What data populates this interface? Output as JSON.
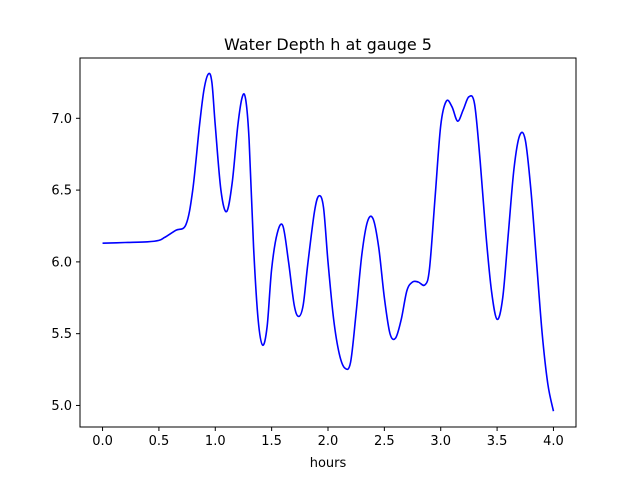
{
  "chart_data": {
    "type": "line",
    "title": "Water Depth h at gauge 5",
    "xlabel": "hours",
    "ylabel": "",
    "xlim": [
      -0.2,
      4.2
    ],
    "ylim": [
      4.85,
      7.42
    ],
    "xticks": [
      0.0,
      0.5,
      1.0,
      1.5,
      2.0,
      2.5,
      3.0,
      3.5,
      4.0
    ],
    "xtick_labels": [
      "0.0",
      "0.5",
      "1.0",
      "1.5",
      "2.0",
      "2.5",
      "3.0",
      "3.5",
      "4.0"
    ],
    "yticks": [
      5.0,
      5.5,
      6.0,
      6.5,
      7.0
    ],
    "ytick_labels": [
      "5.0",
      "5.5",
      "6.0",
      "6.5",
      "7.0"
    ],
    "grid": false,
    "series": [
      {
        "color": "#0000ff",
        "points": [
          [
            0.0,
            6.13
          ],
          [
            0.2,
            6.135
          ],
          [
            0.4,
            6.14
          ],
          [
            0.5,
            6.15
          ],
          [
            0.55,
            6.17
          ],
          [
            0.65,
            6.22
          ],
          [
            0.74,
            6.26
          ],
          [
            0.8,
            6.5
          ],
          [
            0.86,
            6.95
          ],
          [
            0.9,
            7.2
          ],
          [
            0.94,
            7.31
          ],
          [
            0.97,
            7.25
          ],
          [
            1.0,
            6.95
          ],
          [
            1.05,
            6.5
          ],
          [
            1.1,
            6.35
          ],
          [
            1.15,
            6.55
          ],
          [
            1.2,
            6.95
          ],
          [
            1.24,
            7.15
          ],
          [
            1.27,
            7.13
          ],
          [
            1.3,
            6.85
          ],
          [
            1.34,
            6.1
          ],
          [
            1.38,
            5.6
          ],
          [
            1.42,
            5.42
          ],
          [
            1.46,
            5.55
          ],
          [
            1.5,
            5.95
          ],
          [
            1.55,
            6.2
          ],
          [
            1.6,
            6.25
          ],
          [
            1.65,
            6.0
          ],
          [
            1.7,
            5.7
          ],
          [
            1.74,
            5.62
          ],
          [
            1.78,
            5.7
          ],
          [
            1.82,
            5.98
          ],
          [
            1.88,
            6.35
          ],
          [
            1.92,
            6.46
          ],
          [
            1.96,
            6.38
          ],
          [
            2.0,
            6.0
          ],
          [
            2.05,
            5.6
          ],
          [
            2.1,
            5.36
          ],
          [
            2.15,
            5.26
          ],
          [
            2.2,
            5.3
          ],
          [
            2.25,
            5.65
          ],
          [
            2.3,
            6.05
          ],
          [
            2.35,
            6.28
          ],
          [
            2.4,
            6.3
          ],
          [
            2.45,
            6.1
          ],
          [
            2.5,
            5.75
          ],
          [
            2.55,
            5.5
          ],
          [
            2.6,
            5.47
          ],
          [
            2.65,
            5.6
          ],
          [
            2.7,
            5.8
          ],
          [
            2.75,
            5.86
          ],
          [
            2.8,
            5.86
          ],
          [
            2.86,
            5.84
          ],
          [
            2.9,
            5.95
          ],
          [
            2.95,
            6.45
          ],
          [
            3.0,
            6.95
          ],
          [
            3.05,
            7.12
          ],
          [
            3.1,
            7.08
          ],
          [
            3.15,
            6.98
          ],
          [
            3.2,
            7.06
          ],
          [
            3.25,
            7.15
          ],
          [
            3.3,
            7.1
          ],
          [
            3.35,
            6.7
          ],
          [
            3.4,
            6.2
          ],
          [
            3.45,
            5.8
          ],
          [
            3.5,
            5.6
          ],
          [
            3.55,
            5.75
          ],
          [
            3.6,
            6.2
          ],
          [
            3.65,
            6.65
          ],
          [
            3.7,
            6.88
          ],
          [
            3.75,
            6.85
          ],
          [
            3.8,
            6.5
          ],
          [
            3.85,
            6.0
          ],
          [
            3.9,
            5.5
          ],
          [
            3.95,
            5.15
          ],
          [
            4.0,
            4.96
          ]
        ]
      }
    ]
  }
}
